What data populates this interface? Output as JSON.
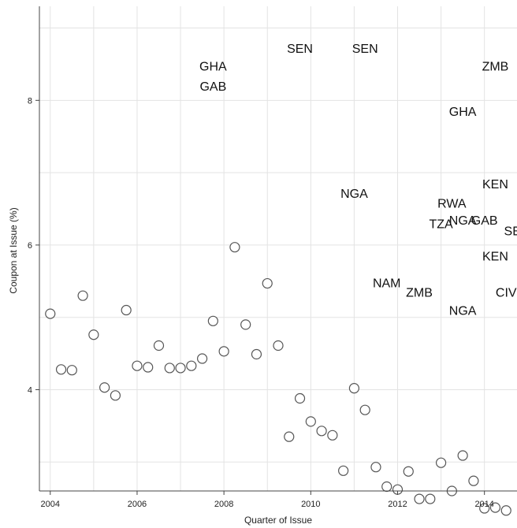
{
  "chart_data": {
    "type": "scatter",
    "title": "",
    "xlabel": "Quarter of Issue",
    "ylabel": "Coupon at Issue (%)",
    "xlim": [
      2003.75,
      2014.75
    ],
    "ylim": [
      2.6,
      9.3
    ],
    "xticks": [
      2004,
      2006,
      2008,
      2010,
      2012,
      2014
    ],
    "yticks": [
      4,
      6,
      8
    ],
    "grid": true,
    "series": [
      {
        "points": [
          [
            2004.0,
            5.05
          ],
          [
            2004.25,
            4.28
          ],
          [
            2004.5,
            4.27
          ],
          [
            2004.75,
            5.3
          ],
          [
            2005.0,
            4.76
          ],
          [
            2005.25,
            4.03
          ],
          [
            2005.5,
            3.92
          ],
          [
            2005.75,
            5.1
          ],
          [
            2006.0,
            4.33
          ],
          [
            2006.25,
            4.31
          ],
          [
            2006.5,
            4.61
          ],
          [
            2006.75,
            4.3
          ],
          [
            2007.0,
            4.3
          ],
          [
            2007.25,
            4.33
          ],
          [
            2007.5,
            4.43
          ],
          [
            2007.75,
            4.95
          ],
          [
            2008.0,
            4.53
          ],
          [
            2008.25,
            5.97
          ],
          [
            2008.5,
            4.9
          ],
          [
            2008.75,
            4.49
          ],
          [
            2009.0,
            5.47
          ],
          [
            2009.25,
            4.61
          ],
          [
            2009.5,
            3.35
          ],
          [
            2009.75,
            3.88
          ],
          [
            2010.0,
            3.56
          ],
          [
            2010.25,
            3.43
          ],
          [
            2010.5,
            3.37
          ],
          [
            2010.75,
            2.88
          ],
          [
            2011.0,
            4.02
          ],
          [
            2011.25,
            3.72
          ],
          [
            2011.5,
            2.93
          ],
          [
            2011.75,
            2.66
          ],
          [
            2012.0,
            2.62
          ],
          [
            2012.25,
            2.87
          ],
          [
            2012.5,
            2.49
          ],
          [
            2012.75,
            2.49
          ],
          [
            2013.0,
            2.99
          ],
          [
            2013.25,
            2.6
          ],
          [
            2013.5,
            3.09
          ],
          [
            2013.75,
            2.74
          ],
          [
            2014.0,
            2.36
          ],
          [
            2014.25,
            2.37
          ],
          [
            2014.5,
            2.33
          ]
        ]
      }
    ],
    "labels": [
      {
        "text": "GHA",
        "x": 2007.75,
        "y": 8.48
      },
      {
        "text": "GAB",
        "x": 2007.75,
        "y": 8.2
      },
      {
        "text": "SEN",
        "x": 2009.75,
        "y": 8.72
      },
      {
        "text": "SEN",
        "x": 2011.25,
        "y": 8.72
      },
      {
        "text": "ZMB",
        "x": 2014.25,
        "y": 8.48
      },
      {
        "text": "GHA",
        "x": 2013.5,
        "y": 7.85
      },
      {
        "text": "NGA",
        "x": 2011.0,
        "y": 6.72
      },
      {
        "text": "KEN",
        "x": 2014.25,
        "y": 6.85
      },
      {
        "text": "RWA",
        "x": 2013.25,
        "y": 6.58
      },
      {
        "text": "TZA",
        "x": 2013.0,
        "y": 6.3
      },
      {
        "text": "NGA",
        "x": 2013.5,
        "y": 6.35
      },
      {
        "text": "GAB",
        "x": 2014.0,
        "y": 6.35
      },
      {
        "text": "SEN",
        "x": 2014.75,
        "y": 6.2
      },
      {
        "text": "KEN",
        "x": 2014.25,
        "y": 5.85
      },
      {
        "text": "NAM",
        "x": 2011.75,
        "y": 5.48
      },
      {
        "text": "ZMB",
        "x": 2012.5,
        "y": 5.35
      },
      {
        "text": "CIV",
        "x": 2014.5,
        "y": 5.35
      },
      {
        "text": "NGA",
        "x": 2013.5,
        "y": 5.1
      }
    ]
  }
}
